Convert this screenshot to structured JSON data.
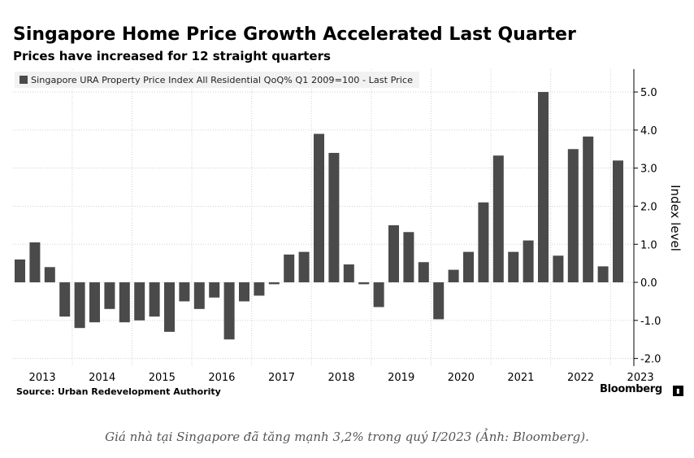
{
  "chart_data": {
    "type": "bar",
    "title": "Singapore Home Price Growth Accelerated Last Quarter",
    "subtitle": "Prices have increased for 12 straight quarters",
    "legend": "Singapore URA Property Price Index All Residential QoQ% Q1 2009=100 - Last Price",
    "legend_position": "top-left",
    "ylabel": "Index level",
    "ylim": [
      -2.2,
      5.6
    ],
    "yticks": [
      "5.0",
      "4.0",
      "3.0",
      "2.0",
      "1.0",
      "0.0",
      "-1.0",
      "-2.0"
    ],
    "ytick_values": [
      5,
      4,
      3,
      2,
      1,
      0,
      -1,
      -2
    ],
    "y_axis_position": "right",
    "grid": true,
    "year_labels": [
      "2013",
      "2014",
      "2015",
      "2016",
      "2017",
      "2018",
      "2019",
      "2020",
      "2021",
      "2022",
      "2023"
    ],
    "quarters": [
      "2013 Q1",
      "2013 Q2",
      "2013 Q3",
      "2013 Q4",
      "2014 Q1",
      "2014 Q2",
      "2014 Q3",
      "2014 Q4",
      "2015 Q1",
      "2015 Q2",
      "2015 Q3",
      "2015 Q4",
      "2016 Q1",
      "2016 Q2",
      "2016 Q3",
      "2016 Q4",
      "2017 Q1",
      "2017 Q2",
      "2017 Q3",
      "2017 Q4",
      "2018 Q1",
      "2018 Q2",
      "2018 Q3",
      "2018 Q4",
      "2019 Q1",
      "2019 Q2",
      "2019 Q3",
      "2019 Q4",
      "2020 Q1",
      "2020 Q2",
      "2020 Q3",
      "2020 Q4",
      "2021 Q1",
      "2021 Q2",
      "2021 Q3",
      "2021 Q4",
      "2022 Q1",
      "2022 Q2",
      "2022 Q3",
      "2022 Q4",
      "2023 Q1"
    ],
    "values": [
      0.6,
      1.05,
      0.4,
      -0.9,
      -1.2,
      -1.05,
      -0.7,
      -1.05,
      -1.0,
      -0.9,
      -1.3,
      -0.5,
      -0.7,
      -0.4,
      -1.5,
      -0.5,
      -0.35,
      -0.05,
      0.73,
      0.8,
      3.9,
      3.4,
      0.47,
      -0.05,
      -0.65,
      1.5,
      1.32,
      0.53,
      -0.97,
      0.33,
      0.8,
      2.1,
      3.33,
      0.8,
      1.1,
      5.0,
      0.7,
      3.5,
      3.83,
      0.42,
      3.2
    ],
    "bar_color": "#4a4a4a"
  },
  "source": "Source: Urban Redevelopment Authority",
  "brand": "Bloomberg",
  "caption": "Giá nhà tại Singapore đã tăng mạnh 3,2% trong quý I/2023 (Ảnh: Bloomberg)."
}
